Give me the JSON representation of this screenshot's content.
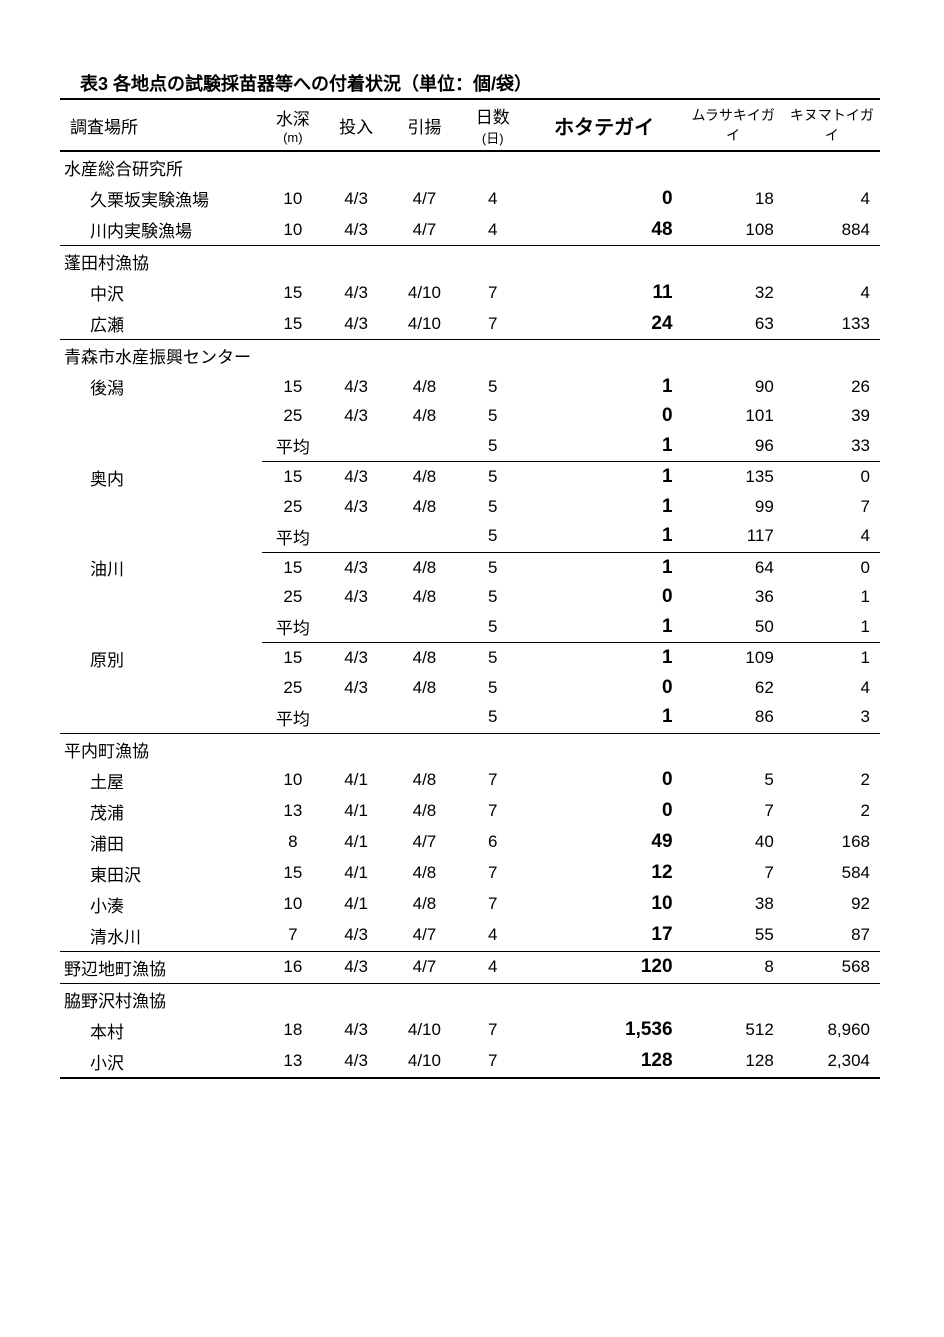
{
  "title": "表3 各地点の試験採苗器等への付着状況（単位：個/袋）",
  "headers": {
    "location": "調査場所",
    "depth": "水深",
    "depth_unit": "(m)",
    "input": "投入",
    "output": "引揚",
    "days": "日数",
    "days_unit": "(日)",
    "hotate": "ホタテガイ",
    "murasaki": "ムラサキイガイ",
    "kinumatoi": "キヌマトイガイ"
  },
  "sections": [
    {
      "name": "水産総合研究所",
      "rows": [
        {
          "loc": "久栗坂実験漁場",
          "depth": "10",
          "in": "4/3",
          "out": "4/7",
          "days": "4",
          "hotate": "0",
          "mura": "18",
          "kinu": "4"
        },
        {
          "loc": "川内実験漁場",
          "depth": "10",
          "in": "4/3",
          "out": "4/7",
          "days": "4",
          "hotate": "48",
          "mura": "108",
          "kinu": "884",
          "underline": true
        }
      ]
    },
    {
      "name": "蓬田村漁協",
      "rows": [
        {
          "loc": "中沢",
          "depth": "15",
          "in": "4/3",
          "out": "4/10",
          "days": "7",
          "hotate": "11",
          "mura": "32",
          "kinu": "4"
        },
        {
          "loc": "広瀬",
          "depth": "15",
          "in": "4/3",
          "out": "4/10",
          "days": "7",
          "hotate": "24",
          "mura": "63",
          "kinu": "133",
          "underline": true
        }
      ]
    },
    {
      "name": "青森市水産振興センター",
      "subsections": [
        {
          "loc": "後潟",
          "rows": [
            {
              "depth": "15",
              "in": "4/3",
              "out": "4/8",
              "days": "5",
              "hotate": "1",
              "mura": "90",
              "kinu": "26"
            },
            {
              "depth": "25",
              "in": "4/3",
              "out": "4/8",
              "days": "5",
              "hotate": "0",
              "mura": "101",
              "kinu": "39"
            },
            {
              "depth": "平均",
              "days": "5",
              "hotate": "1",
              "mura": "96",
              "kinu": "33",
              "avg": true
            }
          ]
        },
        {
          "loc": "奥内",
          "rows": [
            {
              "depth": "15",
              "in": "4/3",
              "out": "4/8",
              "days": "5",
              "hotate": "1",
              "mura": "135",
              "kinu": "0"
            },
            {
              "depth": "25",
              "in": "4/3",
              "out": "4/8",
              "days": "5",
              "hotate": "1",
              "mura": "99",
              "kinu": "7"
            },
            {
              "depth": "平均",
              "days": "5",
              "hotate": "1",
              "mura": "117",
              "kinu": "4",
              "avg": true
            }
          ]
        },
        {
          "loc": "油川",
          "rows": [
            {
              "depth": "15",
              "in": "4/3",
              "out": "4/8",
              "days": "5",
              "hotate": "1",
              "mura": "64",
              "kinu": "0"
            },
            {
              "depth": "25",
              "in": "4/3",
              "out": "4/8",
              "days": "5",
              "hotate": "0",
              "mura": "36",
              "kinu": "1"
            },
            {
              "depth": "平均",
              "days": "5",
              "hotate": "1",
              "mura": "50",
              "kinu": "1",
              "avg": true
            }
          ]
        },
        {
          "loc": "原別",
          "rows": [
            {
              "depth": "15",
              "in": "4/3",
              "out": "4/8",
              "days": "5",
              "hotate": "1",
              "mura": "109",
              "kinu": "1"
            },
            {
              "depth": "25",
              "in": "4/3",
              "out": "4/8",
              "days": "5",
              "hotate": "0",
              "mura": "62",
              "kinu": "4"
            },
            {
              "depth": "平均",
              "days": "5",
              "hotate": "1",
              "mura": "86",
              "kinu": "3",
              "avg": true,
              "fullunder": true
            }
          ]
        }
      ]
    },
    {
      "name": "平内町漁協",
      "rows": [
        {
          "loc": "土屋",
          "depth": "10",
          "in": "4/1",
          "out": "4/8",
          "days": "7",
          "hotate": "0",
          "mura": "5",
          "kinu": "2"
        },
        {
          "loc": "茂浦",
          "depth": "13",
          "in": "4/1",
          "out": "4/8",
          "days": "7",
          "hotate": "0",
          "mura": "7",
          "kinu": "2"
        },
        {
          "loc": "浦田",
          "depth": "8",
          "in": "4/1",
          "out": "4/7",
          "days": "6",
          "hotate": "49",
          "mura": "40",
          "kinu": "168"
        },
        {
          "loc": "東田沢",
          "depth": "15",
          "in": "4/1",
          "out": "4/8",
          "days": "7",
          "hotate": "12",
          "mura": "7",
          "kinu": "584"
        },
        {
          "loc": "小湊",
          "depth": "10",
          "in": "4/1",
          "out": "4/8",
          "days": "7",
          "hotate": "10",
          "mura": "38",
          "kinu": "92"
        },
        {
          "loc": "清水川",
          "depth": "7",
          "in": "4/3",
          "out": "4/7",
          "days": "4",
          "hotate": "17",
          "mura": "55",
          "kinu": "87",
          "underline": true
        }
      ]
    },
    {
      "name": "野辺地町漁協",
      "inline": true,
      "rows": [
        {
          "depth": "16",
          "in": "4/3",
          "out": "4/7",
          "days": "4",
          "hotate": "120",
          "mura": "8",
          "kinu": "568",
          "underline": true
        }
      ]
    },
    {
      "name": "脇野沢村漁協",
      "rows": [
        {
          "loc": "本村",
          "depth": "18",
          "in": "4/3",
          "out": "4/10",
          "days": "7",
          "hotate": "1,536",
          "mura": "512",
          "kinu": "8,960"
        },
        {
          "loc": "小沢",
          "depth": "13",
          "in": "4/3",
          "out": "4/10",
          "days": "7",
          "hotate": "128",
          "mura": "128",
          "kinu": "2,304",
          "final": true
        }
      ]
    }
  ]
}
